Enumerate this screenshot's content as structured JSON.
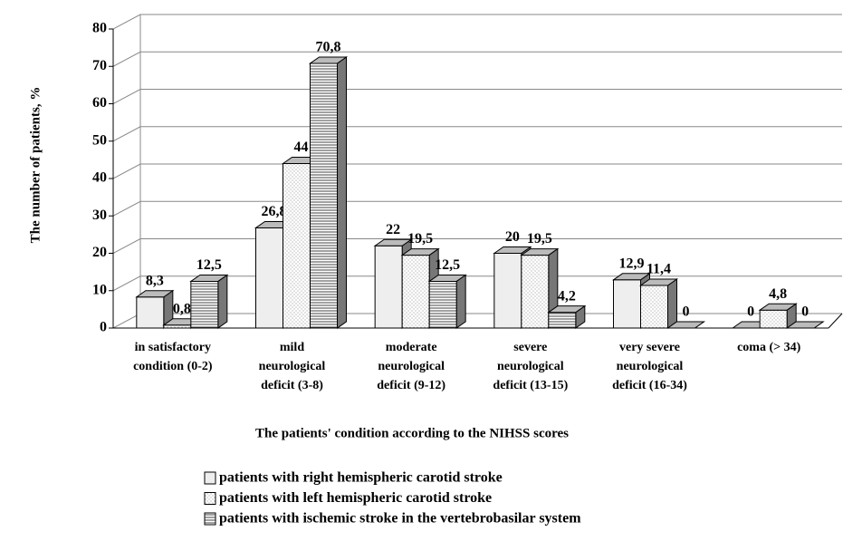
{
  "chart_data": {
    "type": "bar3d",
    "y_label": "The number of patients, %",
    "x_label": "The patients' condition according to the NIHSS scores",
    "categories": [
      [
        "in satisfactory",
        "condition (0-2)"
      ],
      [
        "mild",
        "neurological",
        "deficit (3-8)"
      ],
      [
        "moderate",
        "neurological",
        "deficit (9-12)"
      ],
      [
        "severe",
        "neurological",
        "deficit (13-15)"
      ],
      [
        "very severe",
        "neurological",
        "deficit (16-34)"
      ],
      [
        "coma (> 34)"
      ]
    ],
    "series": [
      {
        "name": "patients with right hemispheric carotid stroke",
        "color": "#eeeeee",
        "pattern": "none",
        "values": [
          8.3,
          26.8,
          22,
          20,
          12.9,
          0
        ],
        "value_labels": [
          "8,3",
          "26,8",
          "22",
          "20",
          "12,9",
          "0"
        ]
      },
      {
        "name": "patients with left hemispheric carotid stroke",
        "color": "#ffffff",
        "pattern": "dots",
        "values": [
          0.8,
          44,
          19.5,
          19.5,
          11.4,
          4.8
        ],
        "value_labels": [
          "0,8",
          "44",
          "19,5",
          "19,5",
          "11,4",
          "4,8"
        ]
      },
      {
        "name": "patients with ischemic stroke in the vertebrobasilar system",
        "color": "#f4f4f4",
        "pattern": "stripes",
        "values": [
          12.5,
          70.8,
          12.5,
          4.2,
          0,
          0
        ],
        "value_labels": [
          "12,5",
          "70,8",
          "12,5",
          "4,2",
          "0",
          "0"
        ]
      }
    ],
    "ylim": [
      0,
      80
    ],
    "yticks": [
      0,
      10,
      20,
      30,
      40,
      50,
      60,
      70,
      80
    ],
    "grid": true
  }
}
